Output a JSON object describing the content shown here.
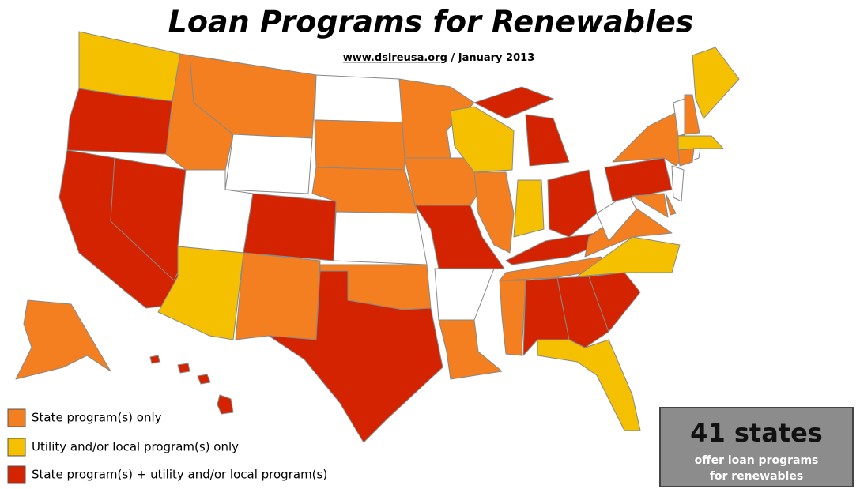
{
  "header": {
    "title": "Loan Programs for Renewables",
    "link": "www.dsireusa.org",
    "date": " / January 2013"
  },
  "legend": [
    {
      "label": "State program(s) only",
      "color": "#f47f20"
    },
    {
      "label": "Utility and/or local program(s) only",
      "color": "#f5c000"
    },
    {
      "label": "State program(s) + utility and/or local program(s)",
      "color": "#d42300"
    }
  ],
  "callout": {
    "headline": "41 states",
    "line1": "offer loan programs",
    "line2": "for renewables"
  }
}
